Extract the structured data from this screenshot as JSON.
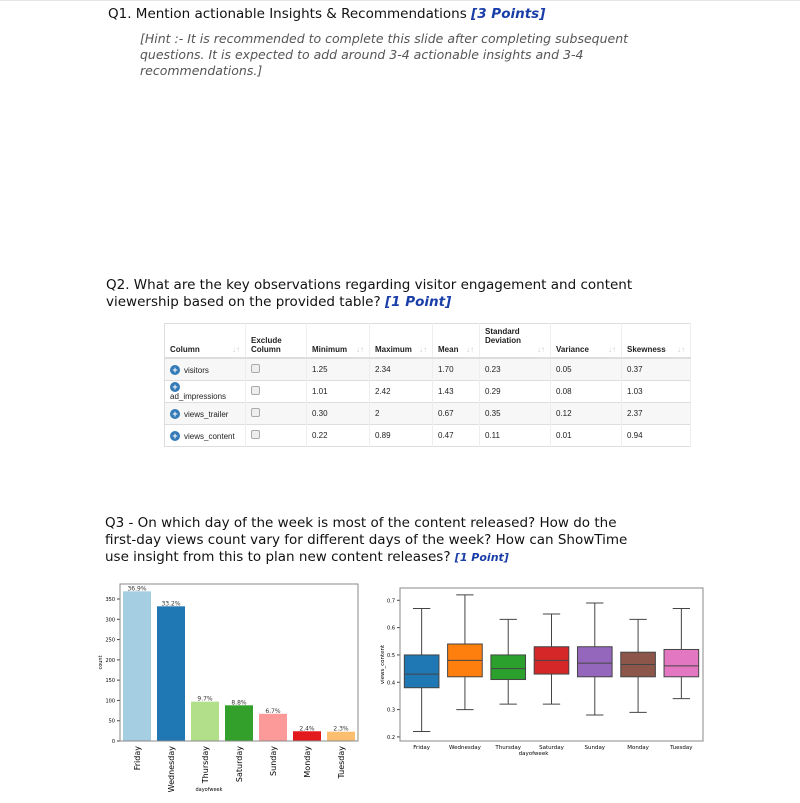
{
  "q1": {
    "title": "Q1. Mention actionable Insights & Recommendations ",
    "points": "[3 Points]",
    "hint": "[Hint :- It is recommended to complete this slide after completing subsequent questions. It is expected to add around 3-4 actionable insights and 3-4 recommendations.]"
  },
  "q2": {
    "title": "Q2. What are the key observations regarding visitor engagement and content viewership based on the provided table? ",
    "points": "[1 Point]"
  },
  "table": {
    "headers": [
      "Column",
      "Exclude Column",
      "Minimum",
      "Maximum",
      "Mean",
      "Standard Deviation",
      "Variance",
      "Skewness"
    ],
    "rows": [
      [
        "visitors",
        "1.25",
        "2.34",
        "1.70",
        "0.23",
        "0.05",
        "0.37"
      ],
      [
        "ad_impressions",
        "1.01",
        "2.42",
        "1.43",
        "0.29",
        "0.08",
        "1.03"
      ],
      [
        "views_trailer",
        "0.30",
        "2",
        "0.67",
        "0.35",
        "0.12",
        "2.37"
      ],
      [
        "views_content",
        "0.22",
        "0.89",
        "0.47",
        "0.11",
        "0.01",
        "0.94"
      ]
    ]
  },
  "q3": {
    "title": "Q3 - On which day of the week is most of the content released? How do the first-day views count vary for different days of the week? How can ShowTime use insight from this to plan new content releases? ",
    "points": "[1 Point]"
  },
  "chart_data": [
    {
      "type": "bar",
      "xlabel": "dayofweek",
      "ylabel": "count",
      "ylim": [
        0,
        387
      ],
      "yticks": [
        0,
        50,
        100,
        150,
        200,
        250,
        300,
        350
      ],
      "categories": [
        "Friday",
        "Wednesday",
        "Thursday",
        "Saturday",
        "Sunday",
        "Monday",
        "Tuesday"
      ],
      "values": [
        369,
        332,
        97,
        88,
        67,
        24,
        23
      ],
      "labels": [
        "36.9%",
        "33.2%",
        "9.7%",
        "8.8%",
        "6.7%",
        "2.4%",
        "2.3%"
      ],
      "colors": [
        "#a6cee3",
        "#1f78b4",
        "#b2df8a",
        "#33a02c",
        "#fb9a99",
        "#e31a1c",
        "#fdbf6f"
      ]
    },
    {
      "type": "box",
      "xlabel": "dayofweek",
      "ylabel": "views_content",
      "ylim": [
        0.185,
        0.745
      ],
      "yticks": [
        "0.2",
        "0.3",
        "0.4",
        "0.5",
        "0.6",
        "0.7"
      ],
      "categories": [
        "Friday",
        "Wednesday",
        "Thursday",
        "Saturday",
        "Sunday",
        "Monday",
        "Tuesday"
      ],
      "boxes": [
        [
          0.22,
          0.38,
          0.43,
          0.5,
          0.67
        ],
        [
          0.3,
          0.42,
          0.48,
          0.54,
          0.72
        ],
        [
          0.32,
          0.41,
          0.45,
          0.5,
          0.63
        ],
        [
          0.32,
          0.43,
          0.48,
          0.53,
          0.65
        ],
        [
          0.28,
          0.42,
          0.47,
          0.53,
          0.69
        ],
        [
          0.29,
          0.42,
          0.465,
          0.51,
          0.63
        ],
        [
          0.34,
          0.42,
          0.46,
          0.52,
          0.67
        ]
      ],
      "colors": [
        "#1f77b4",
        "#ff7f0e",
        "#2ca02c",
        "#d62728",
        "#9467bd",
        "#8c564b",
        "#e377c2"
      ]
    }
  ]
}
